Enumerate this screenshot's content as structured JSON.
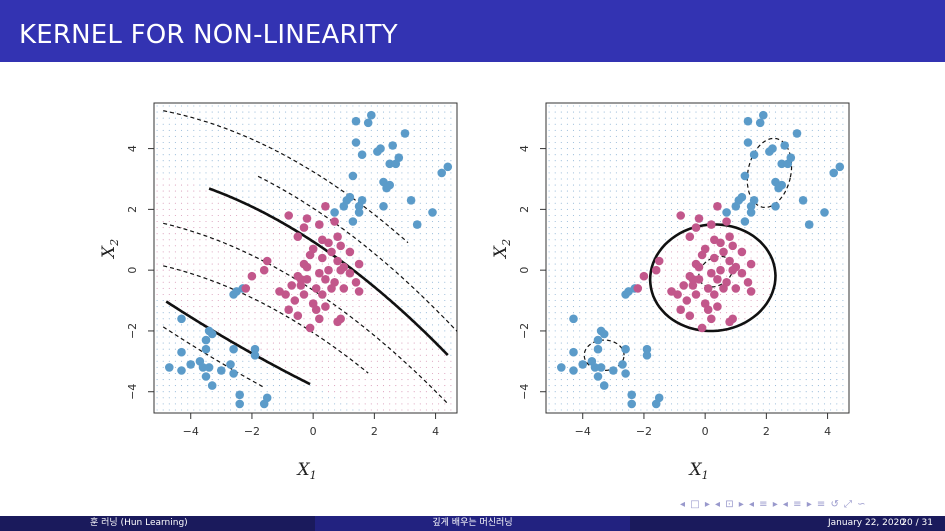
{
  "slide": {
    "title": "KERNEL FOR NON-LINEARITY",
    "nav_symbols": "◂ □ ▸ ◂ ⊡ ▸ ◂ ≡ ▸ ◂ ≡ ▸ ≡ ↺ ⤢ ∽"
  },
  "footer": {
    "author": "훈 러닝 (Hun Learning)",
    "course": "깊게 배우는 머신러닝",
    "date": "January 22, 2020",
    "page": "20 / 31"
  },
  "colors": {
    "title_bar": "#3333b2",
    "footer_dark": "#1a1a5c",
    "footer_mid": "#222280",
    "class_blue": "#5b9bc9",
    "class_pink": "#c2578b"
  },
  "chart_data": [
    {
      "type": "scatter",
      "xlabel": "X1",
      "ylabel": "X2",
      "xlim": [
        -5.2,
        4.7
      ],
      "ylim": [
        -4.7,
        5.5
      ],
      "xticks": [
        -4,
        -2,
        0,
        2,
        4
      ],
      "yticks": [
        -4,
        -2,
        0,
        2,
        4
      ],
      "grid": "dotted background colored by predicted class",
      "series": [
        {
          "color": "#5b9bc9",
          "points": [
            [
              1.4,
              4.9
            ],
            [
              1.9,
              5.1
            ],
            [
              1.8,
              4.85
            ],
            [
              2.1,
              3.9
            ],
            [
              2.2,
              4.0
            ],
            [
              3.0,
              4.5
            ],
            [
              2.6,
              4.1
            ],
            [
              2.8,
              3.7
            ],
            [
              1.4,
              4.2
            ],
            [
              1.6,
              3.8
            ],
            [
              2.5,
              3.5
            ],
            [
              2.7,
              3.5
            ],
            [
              4.4,
              3.4
            ],
            [
              4.2,
              3.2
            ],
            [
              1.3,
              3.1
            ],
            [
              2.3,
              2.9
            ],
            [
              2.5,
              2.8
            ],
            [
              2.4,
              2.7
            ],
            [
              1.2,
              2.4
            ],
            [
              1.1,
              2.3
            ],
            [
              1.6,
              2.3
            ],
            [
              1.5,
              2.1
            ],
            [
              1.0,
              2.1
            ],
            [
              1.5,
              1.9
            ],
            [
              3.2,
              2.3
            ],
            [
              3.4,
              1.5
            ],
            [
              2.3,
              2.1
            ],
            [
              3.9,
              1.9
            ],
            [
              0.7,
              1.9
            ],
            [
              1.3,
              1.6
            ],
            [
              -4.3,
              -1.6
            ],
            [
              -3.4,
              -2.0
            ],
            [
              -3.3,
              -2.1
            ],
            [
              -3.5,
              -2.3
            ],
            [
              -4.3,
              -2.7
            ],
            [
              -3.5,
              -2.6
            ],
            [
              -2.6,
              -2.6
            ],
            [
              -1.9,
              -2.6
            ],
            [
              -1.9,
              -2.8
            ],
            [
              -4.0,
              -3.1
            ],
            [
              -3.7,
              -3.0
            ],
            [
              -3.6,
              -3.2
            ],
            [
              -3.4,
              -3.2
            ],
            [
              -2.7,
              -3.1
            ],
            [
              -4.7,
              -3.2
            ],
            [
              -4.3,
              -3.3
            ],
            [
              -3.0,
              -3.3
            ],
            [
              -3.5,
              -3.5
            ],
            [
              -2.6,
              -3.4
            ],
            [
              -3.3,
              -3.8
            ],
            [
              -2.4,
              -4.1
            ],
            [
              -2.4,
              -4.4
            ],
            [
              -1.5,
              -4.2
            ],
            [
              -1.6,
              -4.4
            ],
            [
              -2.6,
              -0.8
            ],
            [
              -2.3,
              -0.6
            ],
            [
              -2.5,
              -0.7
            ]
          ]
        },
        {
          "color": "#c2578b",
          "points": [
            [
              -0.8,
              1.8
            ],
            [
              -0.3,
              1.4
            ],
            [
              -0.2,
              1.7
            ],
            [
              0.2,
              1.5
            ],
            [
              0.4,
              2.1
            ],
            [
              0.7,
              1.6
            ],
            [
              0.8,
              1.1
            ],
            [
              0.3,
              1.0
            ],
            [
              -0.5,
              1.1
            ],
            [
              0.5,
              0.9
            ],
            [
              0.9,
              0.8
            ],
            [
              0.0,
              0.7
            ],
            [
              0.6,
              0.6
            ],
            [
              1.2,
              0.6
            ],
            [
              0.3,
              0.4
            ],
            [
              -0.1,
              0.5
            ],
            [
              -0.3,
              0.2
            ],
            [
              0.8,
              0.3
            ],
            [
              1.0,
              0.1
            ],
            [
              1.5,
              0.2
            ],
            [
              -1.5,
              0.3
            ],
            [
              0.5,
              0.0
            ],
            [
              0.9,
              0.0
            ],
            [
              1.2,
              -0.1
            ],
            [
              0.2,
              -0.1
            ],
            [
              -0.5,
              -0.2
            ],
            [
              -0.2,
              -0.3
            ],
            [
              0.4,
              -0.3
            ],
            [
              0.7,
              -0.4
            ],
            [
              1.4,
              -0.4
            ],
            [
              -1.6,
              0.0
            ],
            [
              -2.0,
              -0.2
            ],
            [
              -0.7,
              -0.5
            ],
            [
              -0.4,
              -0.5
            ],
            [
              0.1,
              -0.6
            ],
            [
              0.6,
              -0.6
            ],
            [
              1.0,
              -0.6
            ],
            [
              -0.9,
              -0.8
            ],
            [
              -0.3,
              -0.8
            ],
            [
              0.3,
              -0.8
            ],
            [
              1.5,
              -0.7
            ],
            [
              -0.6,
              -1.0
            ],
            [
              0.0,
              -1.1
            ],
            [
              0.4,
              -1.2
            ],
            [
              -0.8,
              -1.3
            ],
            [
              0.1,
              -1.3
            ],
            [
              -0.5,
              -1.5
            ],
            [
              0.2,
              -1.6
            ],
            [
              0.8,
              -1.7
            ],
            [
              0.9,
              -1.6
            ],
            [
              -0.1,
              -1.9
            ],
            [
              -0.4,
              -0.3
            ],
            [
              -2.2,
              -0.6
            ],
            [
              -1.1,
              -0.7
            ],
            [
              -0.2,
              0.1
            ]
          ]
        }
      ]
    },
    {
      "type": "scatter",
      "xlabel": "X1",
      "ylabel": "X2",
      "xlim": [
        -5.2,
        4.7
      ],
      "ylim": [
        -4.7,
        5.5
      ],
      "xticks": [
        -4,
        -2,
        0,
        2,
        4
      ],
      "yticks": [
        -4,
        -2,
        0,
        2,
        4
      ],
      "grid": "dotted background colored by predicted class",
      "series": [
        {
          "color": "#5b9bc9",
          "points": "same observations as left panel"
        },
        {
          "color": "#c2578b",
          "points": "same observations as left panel"
        }
      ]
    }
  ]
}
